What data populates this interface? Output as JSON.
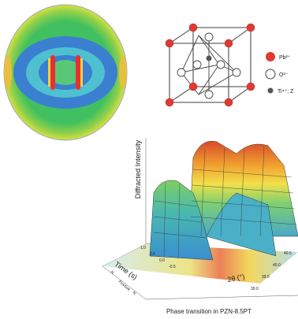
{
  "legend": [
    {
      "label": "Pb²⁺"
    },
    {
      "label": "O²⁻"
    },
    {
      "label": "Ti⁴⁺; Z"
    }
  ],
  "plot": {
    "z_label": "Diffracted Intensity",
    "time_label": "Time (s)",
    "two_theta_label": "2θ (°)",
    "time_ticks": [
      "1.0",
      "0.5",
      "0.0",
      "-0.5"
    ],
    "two_theta_ticks": [
      "39.0",
      "39.5",
      "40.0",
      "40.5"
    ],
    "field_labels": [
      "N",
      "Positive",
      "N"
    ]
  },
  "caption": "Phase transition in PZN-8.5PT"
}
